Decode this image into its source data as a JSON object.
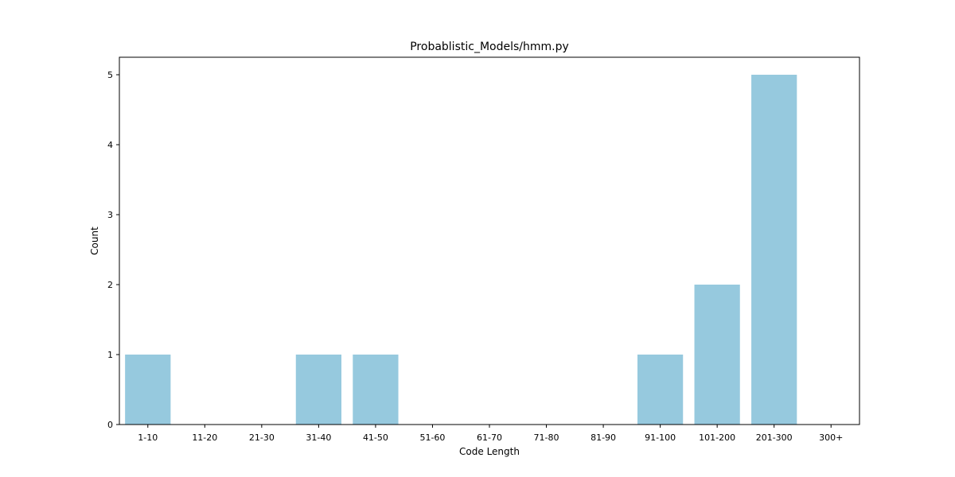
{
  "chart_data": {
    "type": "bar",
    "title": "Probablistic_Models/hmm.py",
    "xlabel": "Code Length",
    "ylabel": "Count",
    "categories": [
      "1-10",
      "11-20",
      "21-30",
      "31-40",
      "41-50",
      "51-60",
      "61-70",
      "71-80",
      "81-90",
      "91-100",
      "101-200",
      "201-300",
      "300+"
    ],
    "values": [
      1,
      0,
      0,
      1,
      1,
      0,
      0,
      0,
      0,
      1,
      2,
      5,
      0
    ],
    "ylim": [
      0,
      5.25
    ],
    "yticks": [
      0,
      1,
      2,
      3,
      4,
      5
    ],
    "bar_color": "#96c9de",
    "grid": false,
    "legend": "none"
  }
}
